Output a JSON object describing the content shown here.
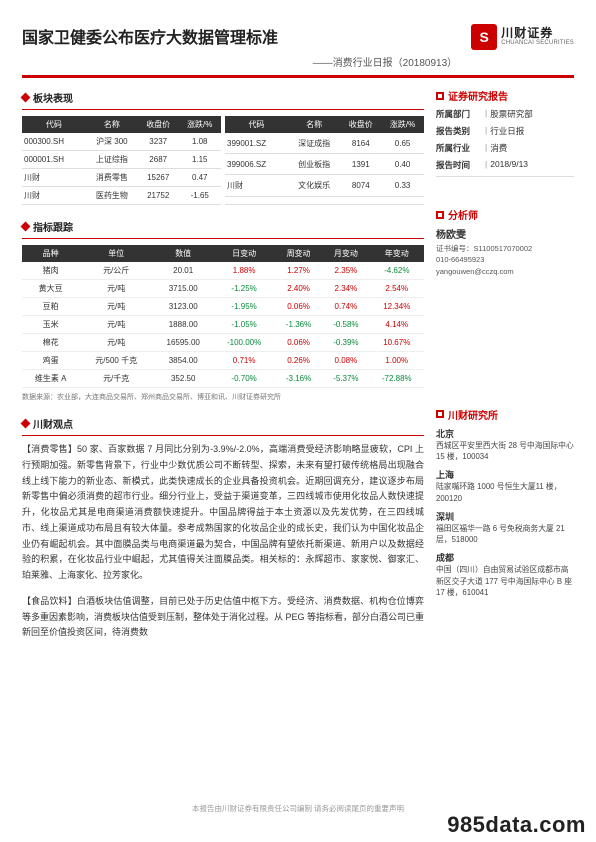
{
  "header": {
    "title": "国家卫健委公布医疗大数据管理标准",
    "subtitle": "——消费行业日报（20180913）",
    "logo_cn": "川财证券",
    "logo_en": "CHUANCAI SECURITIES",
    "logo_glyph": "S"
  },
  "sections": {
    "sector_perf": "板块表现",
    "kpi_track": "指标跟踪",
    "opinion": "川财观点",
    "right_report": "证券研究报告",
    "right_analyst": "分析师",
    "right_institute": "川财研究所"
  },
  "sector_table": {
    "headers_left": [
      "代码",
      "名称",
      "收盘价",
      "涨跌/%"
    ],
    "headers_right": [
      "代码",
      "名称",
      "收盘价",
      "涨跌/%"
    ],
    "rows_left": [
      [
        "000300.SH",
        "沪深 300",
        "3237",
        "1.08"
      ],
      [
        "000001.SH",
        "上证综指",
        "2687",
        "1.15"
      ],
      [
        "川财",
        "消费零售",
        "15267",
        "0.47"
      ],
      [
        "川财",
        "医药生物",
        "21752",
        "-1.65"
      ]
    ],
    "rows_right": [
      [
        "399001.SZ",
        "深证成指",
        "8164",
        "0.65"
      ],
      [
        "399006.SZ",
        "创业板指",
        "1391",
        "0.40"
      ],
      [
        "川财",
        "文化娱乐",
        "8074",
        "0.33"
      ],
      [
        "",
        "",
        "",
        ""
      ]
    ]
  },
  "kpi_table": {
    "headers": [
      "品种",
      "单位",
      "数值",
      "日变动",
      "周变动",
      "月变动",
      "年变动"
    ],
    "rows": [
      {
        "c": [
          "猪肉",
          "元/公斤",
          "20.01"
        ],
        "d": "1.88%",
        "w": "1.27%",
        "m": "2.35%",
        "y": "-4.62%",
        "dcls": "pos",
        "wcls": "pos",
        "mcls": "pos",
        "ycls": "neg"
      },
      {
        "c": [
          "黄大豆",
          "元/吨",
          "3715.00"
        ],
        "d": "-1.25%",
        "w": "2.40%",
        "m": "2.34%",
        "y": "2.54%",
        "dcls": "neg",
        "wcls": "pos",
        "mcls": "pos",
        "ycls": "pos"
      },
      {
        "c": [
          "豆粕",
          "元/吨",
          "3123.00"
        ],
        "d": "-1.95%",
        "w": "0.06%",
        "m": "0.74%",
        "y": "12.34%",
        "dcls": "neg",
        "wcls": "pos",
        "mcls": "pos",
        "ycls": "pos"
      },
      {
        "c": [
          "玉米",
          "元/吨",
          "1888.00"
        ],
        "d": "-1.05%",
        "w": "-1.36%",
        "m": "-0.58%",
        "y": "4.14%",
        "dcls": "neg",
        "wcls": "neg",
        "mcls": "neg",
        "ycls": "pos"
      },
      {
        "c": [
          "棉花",
          "元/吨",
          "16595.00"
        ],
        "d": "-100.00%",
        "w": "0.06%",
        "m": "-0.39%",
        "y": "10.67%",
        "dcls": "neg",
        "wcls": "pos",
        "mcls": "neg",
        "ycls": "pos"
      },
      {
        "c": [
          "鸡蛋",
          "元/500 千克",
          "3854.00"
        ],
        "d": "0.71%",
        "w": "0.26%",
        "m": "0.08%",
        "y": "1.00%",
        "dcls": "pos",
        "wcls": "pos",
        "mcls": "pos",
        "ycls": "pos"
      },
      {
        "c": [
          "维生素 A",
          "元/千克",
          "352.50"
        ],
        "d": "-0.70%",
        "w": "-3.16%",
        "m": "-5.37%",
        "y": "-72.88%",
        "dcls": "neg",
        "wcls": "neg",
        "mcls": "neg",
        "ycls": "neg"
      }
    ],
    "source": "数据来源：农业部，大连商品交易所、郑州商品交易所、博亚和讯、川财证券研究所"
  },
  "opinion": {
    "p1": "【消费零售】50 家、百家数据 7 月同比分别为-3.9%/-2.0%，高端消费受经济影响略显疲软，CPI 上行预期加强。新零售背景下，行业中少数优质公司不断转型、探索，未来有望打破传统格局出现融合线上线下能力的新业态、新模式，此类快速成长的企业具备投资机会。近期回调充分，建议逐步布局新零售中偏必须消费的超市行业。细分行业上，受益于渠道变革，三四线城市使用化妆品人数快速提升，化妆品尤其是电商渠道消费额快速提升。中国品牌得益于本土资源以及先发优势，在三四线城市、线上渠道成功布局且有较大体量。参考成熟国家的化妆品企业的成长史，我们认为中国化妆品企业仍有崛起机会。其中面膜品类与电商渠道最为契合，中国品牌有望依托新渠道、新用户以及数据经验的积累，在化妆品行业中崛起，尤其值得关注面膜品类。相关标的：永辉超市、家家悦、御家汇、珀莱雅、上海家化、拉芳家化。",
    "p2": "【食品饮料】白酒板块估值调整，目前已处于历史估值中枢下方。受经济、消费数据、机构仓位博弈等多重因素影响，消费板块估值受到压制，整体处于消化过程。从 PEG 等指标看，部分白酒公司已重新回至价值投资区间，待消费数"
  },
  "info_panel": {
    "rows": [
      {
        "label": "所属部门",
        "value": "股票研究部"
      },
      {
        "label": "报告类别",
        "value": "行业日报"
      },
      {
        "label": "所属行业",
        "value": "消费"
      },
      {
        "label": "报告时间",
        "value": "2018/9/13"
      }
    ]
  },
  "analyst": {
    "name": "杨欧雯",
    "cert": "证书编号：S1100517070002",
    "phone": "010-66495923",
    "email": "yangouwen@cczq.com"
  },
  "offices": [
    {
      "city": "北京",
      "addr": "西城区平安里西大街 28 号中海国际中心 15 楼，100034"
    },
    {
      "city": "上海",
      "addr": "陆家嘴环路 1000 号恒生大厦11 楼，200120"
    },
    {
      "city": "深圳",
      "addr": "福田区福华一路 6 号免税商务大厦 21 层，518000"
    },
    {
      "city": "成都",
      "addr": "中国（四川）自由贸易试验区成都市高新区交子大道 177 号中海国际中心 B 座 17 楼，610041"
    }
  ],
  "footer": "本报告由川财证券有限责任公司编制 请务必阅读尾页的重要声明",
  "watermark": "985data.com"
}
